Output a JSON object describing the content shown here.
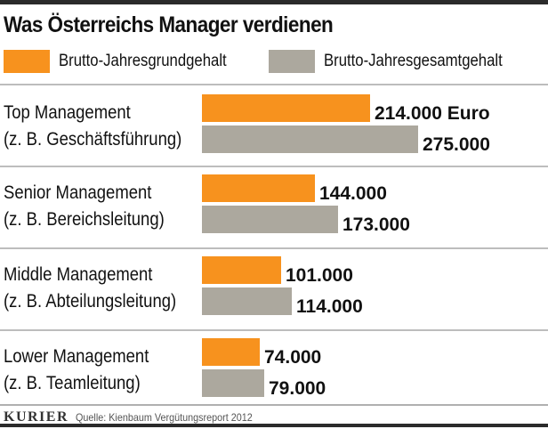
{
  "colors": {
    "base": "#f7921e",
    "total": "#aca89e"
  },
  "chart_data": {
    "type": "bar",
    "orientation": "horizontal",
    "title": "Was Österreichs Manager verdienen",
    "unit_label": "Euro",
    "categories": [
      {
        "name": "Top Management",
        "detail": "(z. B. Geschäftsführung)"
      },
      {
        "name": "Senior Management",
        "detail": "(z. B. Bereichsleitung)"
      },
      {
        "name": "Middle Management",
        "detail": "(z. B. Abteilungsleitung)"
      },
      {
        "name": "Lower Management",
        "detail": "(z. B. Teamleitung)"
      }
    ],
    "series": [
      {
        "name": "Brutto-Jahresgrundgehalt",
        "values": [
          214000,
          144000,
          101000,
          74000
        ],
        "labels": [
          "214.000 Euro",
          "144.000",
          "101.000",
          "74.000"
        ]
      },
      {
        "name": "Brutto-Jahresgesamtgehalt",
        "values": [
          275000,
          173000,
          114000,
          79000
        ],
        "labels": [
          "275.000",
          "173.000",
          "114.000",
          "79.000"
        ]
      }
    ]
  },
  "footer": {
    "brand": "KURIER",
    "source": "Quelle: Kienbaum Vergütungsreport 2012"
  }
}
